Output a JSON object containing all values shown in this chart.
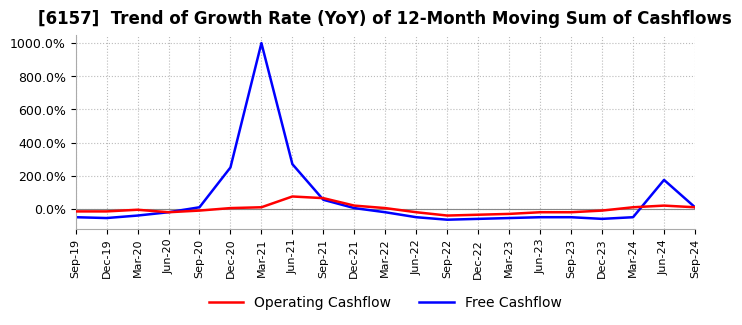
{
  "title": "[6157]  Trend of Growth Rate (YoY) of 12-Month Moving Sum of Cashflows",
  "title_fontsize": 12,
  "ylim": [
    -120,
    1050
  ],
  "yticks": [
    0.0,
    200.0,
    400.0,
    600.0,
    800.0,
    1000.0
  ],
  "ytick_labels": [
    "0.0%",
    "200.0%",
    "400.0%",
    "600.0%",
    "800.0%",
    "1000.0%"
  ],
  "legend_labels": [
    "Operating Cashflow",
    "Free Cashflow"
  ],
  "legend_colors": [
    "red",
    "blue"
  ],
  "operating_cashflow_values": [
    -15,
    -15,
    -5,
    -20,
    -10,
    5,
    10,
    75,
    65,
    20,
    5,
    -20,
    -40,
    -35,
    -30,
    -20,
    -20,
    -10,
    10,
    20,
    10
  ],
  "free_cashflow_values": [
    -50,
    -55,
    -40,
    -20,
    10,
    250,
    1000,
    270,
    55,
    5,
    -20,
    -50,
    -65,
    -60,
    -55,
    -50,
    -50,
    -60,
    -50,
    175,
    10
  ],
  "xtick_labels": [
    "Sep-19",
    "Dec-19",
    "Mar-20",
    "Jun-20",
    "Sep-20",
    "Dec-20",
    "Mar-21",
    "Jun-21",
    "Sep-21",
    "Dec-21",
    "Mar-22",
    "Jun-22",
    "Sep-22",
    "Dec-22",
    "Mar-23",
    "Jun-23",
    "Sep-23",
    "Dec-23",
    "Mar-24",
    "Jun-24",
    "Sep-24"
  ],
  "background_color": "#ffffff",
  "grid_color": "#bbbbbb",
  "line_width": 1.8
}
